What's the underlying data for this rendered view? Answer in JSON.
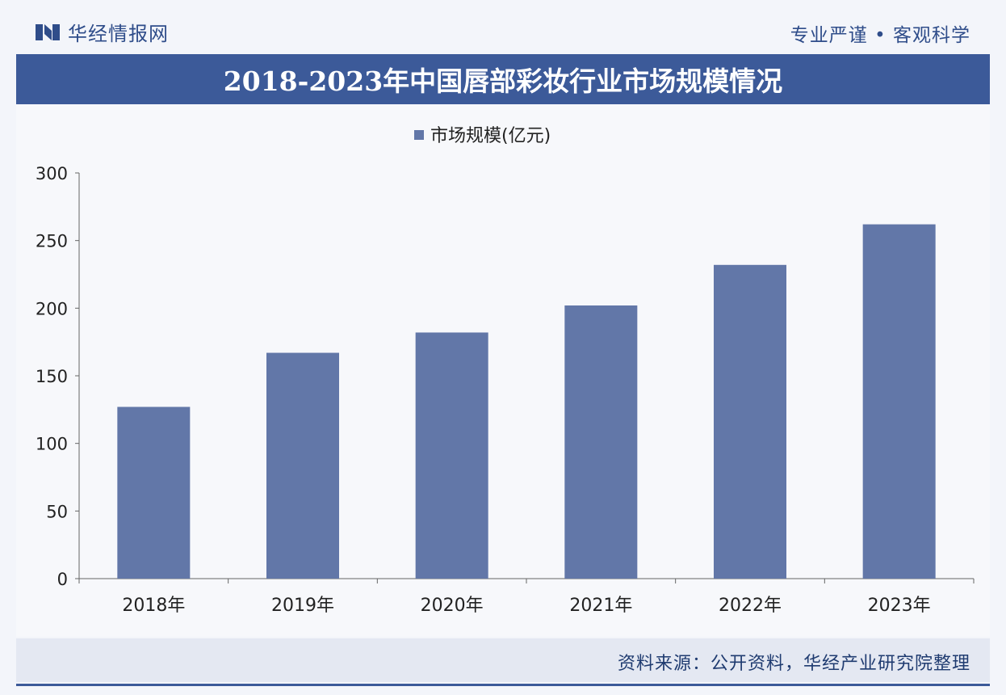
{
  "header": {
    "brand_name": "华经情报网",
    "motto": "专业严谨 • 客观科学"
  },
  "title": "2018-2023年中国唇部彩妆行业市场规模情况",
  "footer": {
    "source": "资料来源：公开资料，华经产业研究院整理"
  },
  "colors": {
    "bar": "#6277a8",
    "title_band": "#3c5a99",
    "brand": "#2f4d8a"
  },
  "chart_data": {
    "type": "bar",
    "title": "2018-2023年中国唇部彩妆行业市场规模情况",
    "categories": [
      "2018年",
      "2019年",
      "2020年",
      "2021年",
      "2022年",
      "2023年"
    ],
    "series": [
      {
        "name": "市场规模(亿元)",
        "values": [
          127,
          167,
          182,
          202,
          232,
          262
        ]
      }
    ],
    "ylim": [
      0,
      300
    ],
    "yticks": [
      0,
      50,
      100,
      150,
      200,
      250,
      300
    ],
    "xlabel": "",
    "ylabel": "",
    "legend_position": "top-center",
    "grid": false
  }
}
